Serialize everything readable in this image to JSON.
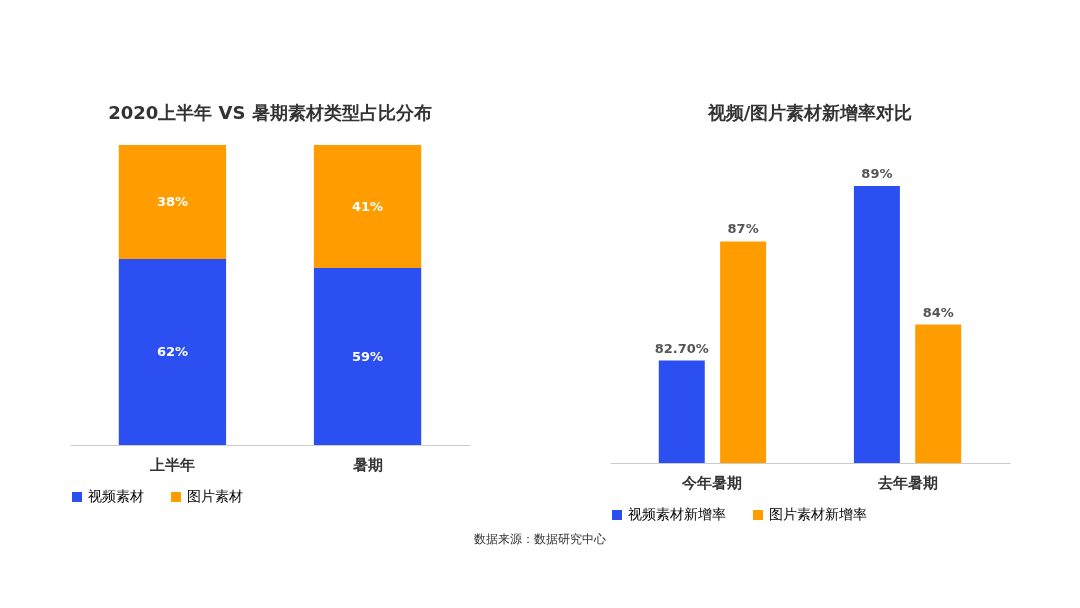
{
  "chart_data": [
    {
      "type": "bar",
      "title": "2020上半年 VS 暑期素材类型占比分布",
      "categories": [
        "上半年",
        "暑期"
      ],
      "stacked": true,
      "ylim": [
        0,
        100
      ],
      "tick_labels": "x",
      "legend": "bottom",
      "series": [
        {
          "name": "视频素材",
          "color": "#2b4ff0",
          "values": [
            62,
            59
          ],
          "value_labels": [
            "62%",
            "59%"
          ]
        },
        {
          "name": "图片素材",
          "color": "#ff9c00",
          "values": [
            38,
            41
          ],
          "value_labels": [
            "38%",
            "41%"
          ]
        }
      ],
      "annotations": [
        "数据来源：数据研究中心"
      ]
    },
    {
      "type": "bar",
      "title": "视频/图片素材新增率对比",
      "categories": [
        "今年暑期",
        "去年暑期"
      ],
      "ylim": [
        79,
        89
      ],
      "tick_labels": "x",
      "legend": "bottom",
      "series": [
        {
          "name": "视频素材新增率",
          "color": "#2b4ff0",
          "values": [
            82.7,
            89
          ],
          "value_labels": [
            "82.70%",
            "89%"
          ]
        },
        {
          "name": "图片素材新增率",
          "color": "#ff9c00",
          "values": [
            87,
            84
          ],
          "value_labels": [
            "87%",
            "84%"
          ]
        }
      ]
    }
  ]
}
